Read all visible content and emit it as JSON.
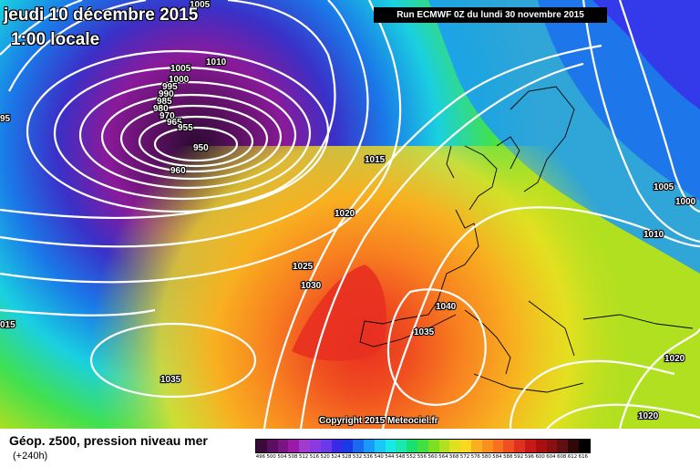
{
  "header": {
    "date": "jeudi 10 décembre 2015",
    "time": "1:00 locale",
    "run": "Run ECMWF 0Z du lundi 30 novembre 2015"
  },
  "copyright": "Copyright 2015 Meteociel.fr",
  "legend": {
    "title": "Géop. z500, pression niveau mer",
    "subtitle": "(+240h)",
    "scale": [
      {
        "v": "496",
        "c": "#3a0a3a"
      },
      {
        "v": "500",
        "c": "#5a0f60"
      },
      {
        "v": "504",
        "c": "#7a1584"
      },
      {
        "v": "508",
        "c": "#9a1aa8"
      },
      {
        "v": "512",
        "c": "#a23ad0"
      },
      {
        "v": "516",
        "c": "#8a3ae0"
      },
      {
        "v": "520",
        "c": "#6a3ae8"
      },
      {
        "v": "524",
        "c": "#3a2ae8"
      },
      {
        "v": "528",
        "c": "#1a3ae8"
      },
      {
        "v": "532",
        "c": "#1a6af0"
      },
      {
        "v": "536",
        "c": "#1a9af8"
      },
      {
        "v": "540",
        "c": "#1ac8f8"
      },
      {
        "v": "544",
        "c": "#1ae8e8"
      },
      {
        "v": "548",
        "c": "#1ae8b0"
      },
      {
        "v": "552",
        "c": "#1ae070"
      },
      {
        "v": "556",
        "c": "#40e040"
      },
      {
        "v": "560",
        "c": "#7ae020"
      },
      {
        "v": "564",
        "c": "#b0e020"
      },
      {
        "v": "568",
        "c": "#e0e020"
      },
      {
        "v": "572",
        "c": "#f8d820"
      },
      {
        "v": "576",
        "c": "#f8b020"
      },
      {
        "v": "580",
        "c": "#f89020"
      },
      {
        "v": "584",
        "c": "#f87020"
      },
      {
        "v": "588",
        "c": "#f05020"
      },
      {
        "v": "592",
        "c": "#e03020"
      },
      {
        "v": "596",
        "c": "#c81818"
      },
      {
        "v": "600",
        "c": "#a81010"
      },
      {
        "v": "604",
        "c": "#881010"
      },
      {
        "v": "608",
        "c": "#601010"
      },
      {
        "v": "612",
        "c": "#300808"
      },
      {
        "v": "616",
        "c": "#000000"
      }
    ]
  },
  "isobar_labels": [
    {
      "t": "1005"
    },
    {
      "t": "1010"
    },
    {
      "t": "1005"
    },
    {
      "t": "1000"
    },
    {
      "t": "995"
    },
    {
      "t": "990"
    },
    {
      "t": "985"
    },
    {
      "t": "980"
    },
    {
      "t": "970"
    },
    {
      "t": "965"
    },
    {
      "t": "955"
    },
    {
      "t": "950"
    },
    {
      "t": "960"
    },
    {
      "t": "95"
    },
    {
      "t": "1015"
    },
    {
      "t": "1020"
    },
    {
      "t": "1025"
    },
    {
      "t": "1030"
    },
    {
      "t": "1040"
    },
    {
      "t": "1035"
    },
    {
      "t": "1035"
    },
    {
      "t": "015"
    },
    {
      "t": "1005"
    },
    {
      "t": "1000"
    },
    {
      "t": "1010"
    },
    {
      "t": "1020"
    },
    {
      "t": "1020"
    }
  ]
}
